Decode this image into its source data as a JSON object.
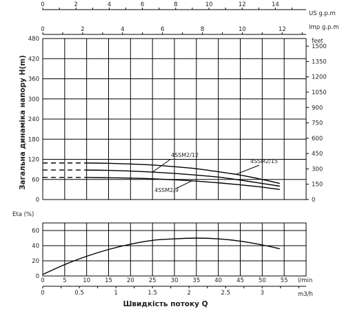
{
  "chart_data": [
    {
      "type": "line",
      "name_key": "head",
      "ylabel": "Загальна динаміка напору H(m)",
      "ylim": [
        0,
        480
      ],
      "yticks": [
        0,
        60,
        120,
        180,
        240,
        300,
        360,
        420,
        480
      ],
      "feet_label": "feet",
      "feet_ticks": [
        0,
        150,
        300,
        450,
        600,
        750,
        900,
        1050,
        1200,
        1350,
        1500
      ],
      "us_gpm_label": "US g.p.m",
      "us_gpm_ticks": [
        0,
        2,
        4,
        6,
        8,
        10,
        12,
        14
      ],
      "imp_gpm_label": "Imp g.p.m",
      "imp_gpm_ticks": [
        0,
        2,
        4,
        6,
        8,
        10,
        12
      ],
      "x_range_lmin": [
        0,
        60
      ],
      "series": [
        {
          "name": "4SSM2/15",
          "x": [
            10,
            15,
            20,
            25,
            30,
            35,
            40,
            45,
            50,
            54
          ],
          "y": [
            109,
            108,
            106,
            103,
            98,
            92,
            83,
            73,
            60,
            48
          ],
          "dashed_to": [
            0,
            109
          ]
        },
        {
          "name": "4SSM2/12",
          "x": [
            10,
            15,
            20,
            25,
            30,
            35,
            40,
            45,
            50,
            54
          ],
          "y": [
            88,
            87,
            85,
            82,
            78,
            73,
            67,
            58,
            48,
            40
          ],
          "dashed_to": [
            0,
            88
          ]
        },
        {
          "name": "4SSM2/9",
          "x": [
            10,
            15,
            20,
            25,
            30,
            35,
            40,
            45,
            50,
            54
          ],
          "y": [
            66,
            65,
            64,
            62,
            59,
            55,
            50,
            44,
            37,
            30
          ],
          "dashed_to": [
            0,
            66
          ]
        }
      ]
    },
    {
      "type": "line",
      "name_key": "efficiency",
      "ylabel": "Eta (%)",
      "ylim": [
        0,
        70
      ],
      "yticks": [
        0,
        20,
        40,
        60
      ],
      "xlabel": "Швидкість потоку Q",
      "lmin_label": "l/min",
      "lmin_ticks": [
        0,
        5,
        10,
        15,
        20,
        25,
        30,
        35,
        40,
        45,
        50,
        55
      ],
      "m3h_label": "m3/h",
      "m3h_ticks": [
        "0",
        "0.5",
        "1",
        "1.5",
        "2",
        "2.5",
        "3"
      ],
      "series": [
        {
          "x": [
            0,
            5,
            10,
            15,
            20,
            25,
            30,
            35,
            40,
            45,
            50,
            54
          ],
          "y": [
            2,
            15,
            26,
            35,
            42,
            47,
            49,
            50,
            49,
            46,
            41,
            36
          ]
        }
      ]
    }
  ]
}
